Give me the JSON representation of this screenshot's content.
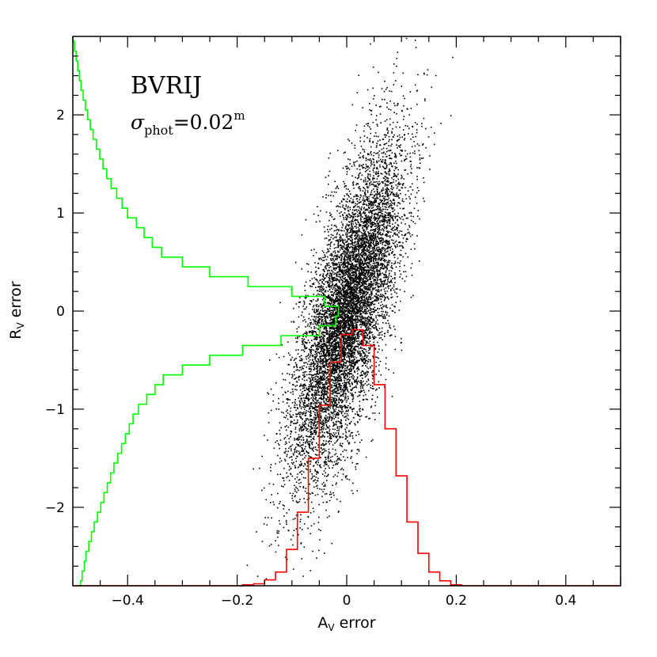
{
  "chart_data": {
    "type": "scatter",
    "annotation": {
      "line1": "BVRIJ",
      "symbol": "σ",
      "subscript": "phot",
      "value": "=0.02",
      "superscript": "m"
    },
    "xlabel": {
      "main": "A",
      "sub": "V",
      "rest": " error"
    },
    "ylabel": {
      "main": "R",
      "sub": "V",
      "rest": " error"
    },
    "xlim": [
      -0.5,
      0.5
    ],
    "ylim": [
      -2.8,
      2.8
    ],
    "x_ticks": [
      {
        "value": -0.4,
        "label": "−0.4"
      },
      {
        "value": -0.2,
        "label": "−0.2"
      },
      {
        "value": 0,
        "label": "0"
      },
      {
        "value": 0.2,
        "label": "0.2"
      },
      {
        "value": 0.4,
        "label": "0.4"
      }
    ],
    "y_ticks": [
      {
        "value": -2,
        "label": "−2"
      },
      {
        "value": -1,
        "label": "−1"
      },
      {
        "value": 0,
        "label": "0"
      },
      {
        "value": 1,
        "label": "1"
      },
      {
        "value": 2,
        "label": "2"
      }
    ],
    "colors": {
      "scatter": "#000000",
      "av_histogram": "#ff0000",
      "rv_histogram": "#00ff00"
    },
    "scatter_model": {
      "n_points": 9000,
      "av_center": 0.0,
      "av_sigma": 0.05,
      "rv_slope": 12,
      "rv_sigma": 0.45,
      "description": "Dense correlated cloud of points along a positive slope through the origin"
    },
    "av_histogram": {
      "description": "Histogram of A_V error (red), peak near 0",
      "x": [
        -0.2,
        -0.18,
        -0.16,
        -0.14,
        -0.12,
        -0.1,
        -0.08,
        -0.06,
        -0.04,
        -0.02,
        0.0,
        0.02,
        0.04,
        0.06,
        0.08,
        0.1,
        0.12,
        0.14,
        0.16,
        0.18,
        0.2,
        0.22
      ],
      "y": [
        -2.8,
        -2.79,
        -2.78,
        -2.74,
        -2.66,
        -2.43,
        -2.05,
        -1.5,
        -0.96,
        -0.52,
        -0.24,
        -0.19,
        -0.35,
        -0.75,
        -1.2,
        -1.68,
        -2.15,
        -2.47,
        -2.66,
        -2.75,
        -2.79,
        -2.8
      ]
    },
    "rv_histogram": {
      "description": "Histogram of R_V error (green), horizontal steps, peak near 0",
      "y": [
        -2.8,
        -2.7,
        -2.6,
        -2.5,
        -2.4,
        -2.3,
        -2.2,
        -2.1,
        -2.0,
        -1.9,
        -1.8,
        -1.7,
        -1.6,
        -1.5,
        -1.4,
        -1.3,
        -1.2,
        -1.1,
        -1.0,
        -0.9,
        -0.8,
        -0.7,
        -0.6,
        -0.5,
        -0.4,
        -0.3,
        -0.2,
        -0.1,
        0.0,
        0.1,
        0.2,
        0.3,
        0.4,
        0.5,
        0.6,
        0.7,
        0.8,
        0.9,
        1.0,
        1.1,
        1.2,
        1.3,
        1.4,
        1.5,
        1.6,
        1.7,
        1.8,
        1.9,
        2.0,
        2.1,
        2.2,
        2.3,
        2.4,
        2.5,
        2.6,
        2.7,
        2.8
      ],
      "x": [
        -0.486,
        -0.483,
        -0.479,
        -0.476,
        -0.471,
        -0.466,
        -0.461,
        -0.455,
        -0.449,
        -0.443,
        -0.437,
        -0.431,
        -0.425,
        -0.418,
        -0.411,
        -0.404,
        -0.397,
        -0.39,
        -0.38,
        -0.365,
        -0.35,
        -0.335,
        -0.3,
        -0.25,
        -0.19,
        -0.12,
        -0.05,
        -0.02,
        -0.015,
        -0.04,
        -0.1,
        -0.18,
        -0.25,
        -0.3,
        -0.338,
        -0.355,
        -0.37,
        -0.384,
        -0.4,
        -0.41,
        -0.42,
        -0.43,
        -0.438,
        -0.445,
        -0.451,
        -0.457,
        -0.463,
        -0.468,
        -0.473,
        -0.477,
        -0.481,
        -0.485,
        -0.488,
        -0.491,
        -0.494,
        -0.497,
        -0.5
      ]
    }
  }
}
